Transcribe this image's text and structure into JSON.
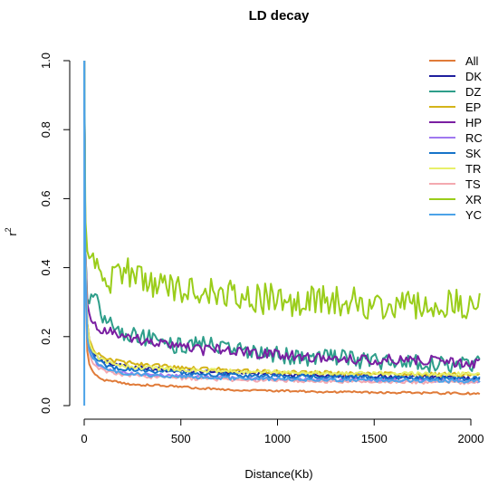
{
  "chart_data": {
    "type": "line",
    "title": "LD decay",
    "xlabel": "Distance(Kb)",
    "ylabel": "r",
    "ylabel_superscript": "2",
    "xlim": [
      0,
      2000
    ],
    "ylim": [
      0,
      1.0
    ],
    "x_ticks": [
      "0",
      "500",
      "1000",
      "1500",
      "2000"
    ],
    "y_ticks": [
      "0.0",
      "0.2",
      "0.4",
      "0.6",
      "0.8",
      "1.0"
    ],
    "legend_position": "top-right",
    "grid": false,
    "x": [
      1,
      5,
      10,
      20,
      40,
      70,
      100,
      150,
      200,
      300,
      400,
      500,
      600,
      700,
      800,
      900,
      1000,
      1100,
      1200,
      1300,
      1400,
      1500,
      1600,
      1700,
      1800,
      1900,
      2000,
      2050
    ],
    "series": [
      {
        "name": "All",
        "color": "#E07B39",
        "values": [
          1.0,
          0.42,
          0.2,
          0.13,
          0.1,
          0.085,
          0.075,
          0.07,
          0.065,
          0.06,
          0.058,
          0.055,
          0.05,
          0.048,
          0.045,
          0.044,
          0.043,
          0.042,
          0.04,
          0.04,
          0.039,
          0.038,
          0.038,
          0.037,
          0.036,
          0.036,
          0.035,
          0.035
        ]
      },
      {
        "name": "DK",
        "color": "#1F1F9E",
        "values": [
          1.0,
          0.45,
          0.3,
          0.2,
          0.16,
          0.14,
          0.13,
          0.12,
          0.115,
          0.11,
          0.105,
          0.1,
          0.1,
          0.095,
          0.095,
          0.092,
          0.09,
          0.09,
          0.088,
          0.086,
          0.085,
          0.085,
          0.084,
          0.083,
          0.082,
          0.081,
          0.08,
          0.08
        ]
      },
      {
        "name": "DZ",
        "color": "#2E9E8A",
        "values": [
          1.0,
          0.5,
          0.32,
          0.3,
          0.3,
          0.3,
          0.26,
          0.23,
          0.21,
          0.2,
          0.19,
          0.17,
          0.18,
          0.17,
          0.16,
          0.15,
          0.15,
          0.14,
          0.14,
          0.14,
          0.13,
          0.13,
          0.13,
          0.13,
          0.12,
          0.12,
          0.12,
          0.15
        ]
      },
      {
        "name": "EP",
        "color": "#D4B41A",
        "values": [
          1.0,
          0.5,
          0.3,
          0.2,
          0.17,
          0.15,
          0.14,
          0.13,
          0.125,
          0.12,
          0.115,
          0.11,
          0.108,
          0.105,
          0.1,
          0.1,
          0.098,
          0.096,
          0.095,
          0.094,
          0.093,
          0.092,
          0.091,
          0.09,
          0.09,
          0.09,
          0.089,
          0.09
        ]
      },
      {
        "name": "HP",
        "color": "#7A1FA2",
        "values": [
          1.0,
          0.5,
          0.32,
          0.28,
          0.25,
          0.23,
          0.22,
          0.21,
          0.2,
          0.19,
          0.18,
          0.17,
          0.16,
          0.165,
          0.16,
          0.15,
          0.15,
          0.145,
          0.14,
          0.14,
          0.135,
          0.13,
          0.135,
          0.13,
          0.13,
          0.125,
          0.12,
          0.12
        ]
      },
      {
        "name": "RC",
        "color": "#A078F0",
        "values": [
          1.0,
          0.45,
          0.25,
          0.18,
          0.14,
          0.12,
          0.11,
          0.1,
          0.095,
          0.09,
          0.088,
          0.085,
          0.083,
          0.082,
          0.08,
          0.079,
          0.078,
          0.077,
          0.076,
          0.075,
          0.075,
          0.074,
          0.074,
          0.073,
          0.073,
          0.072,
          0.072,
          0.072
        ]
      },
      {
        "name": "SK",
        "color": "#1673C9",
        "values": [
          1.0,
          0.46,
          0.26,
          0.19,
          0.15,
          0.13,
          0.12,
          0.11,
          0.105,
          0.1,
          0.098,
          0.095,
          0.092,
          0.09,
          0.088,
          0.087,
          0.086,
          0.085,
          0.084,
          0.083,
          0.082,
          0.082,
          0.081,
          0.08,
          0.08,
          0.079,
          0.078,
          0.078
        ]
      },
      {
        "name": "TR",
        "color": "#E8F06A",
        "values": [
          1.0,
          0.5,
          0.28,
          0.2,
          0.16,
          0.14,
          0.13,
          0.12,
          0.115,
          0.11,
          0.108,
          0.105,
          0.103,
          0.1,
          0.099,
          0.098,
          0.097,
          0.096,
          0.095,
          0.094,
          0.094,
          0.093,
          0.093,
          0.092,
          0.092,
          0.091,
          0.091,
          0.091
        ]
      },
      {
        "name": "TS",
        "color": "#F4A9B0",
        "values": [
          1.0,
          0.44,
          0.24,
          0.17,
          0.13,
          0.11,
          0.1,
          0.095,
          0.09,
          0.085,
          0.082,
          0.08,
          0.078,
          0.076,
          0.075,
          0.074,
          0.073,
          0.072,
          0.071,
          0.07,
          0.07,
          0.069,
          0.069,
          0.068,
          0.068,
          0.067,
          0.067,
          0.067
        ]
      },
      {
        "name": "XR",
        "color": "#9ACD1A",
        "values": [
          1.0,
          0.55,
          0.47,
          0.44,
          0.42,
          0.4,
          0.38,
          0.36,
          0.4,
          0.37,
          0.35,
          0.34,
          0.33,
          0.32,
          0.32,
          0.31,
          0.31,
          0.3,
          0.31,
          0.3,
          0.3,
          0.29,
          0.3,
          0.29,
          0.3,
          0.29,
          0.3,
          0.33
        ]
      },
      {
        "name": "YC",
        "color": "#4CA3E8",
        "values": [
          1.0,
          0.43,
          0.24,
          0.17,
          0.14,
          0.12,
          0.11,
          0.1,
          0.095,
          0.09,
          0.087,
          0.084,
          0.082,
          0.08,
          0.079,
          0.078,
          0.077,
          0.076,
          0.075,
          0.074,
          0.074,
          0.073,
          0.073,
          0.072,
          0.072,
          0.071,
          0.071,
          0.071
        ]
      }
    ]
  }
}
